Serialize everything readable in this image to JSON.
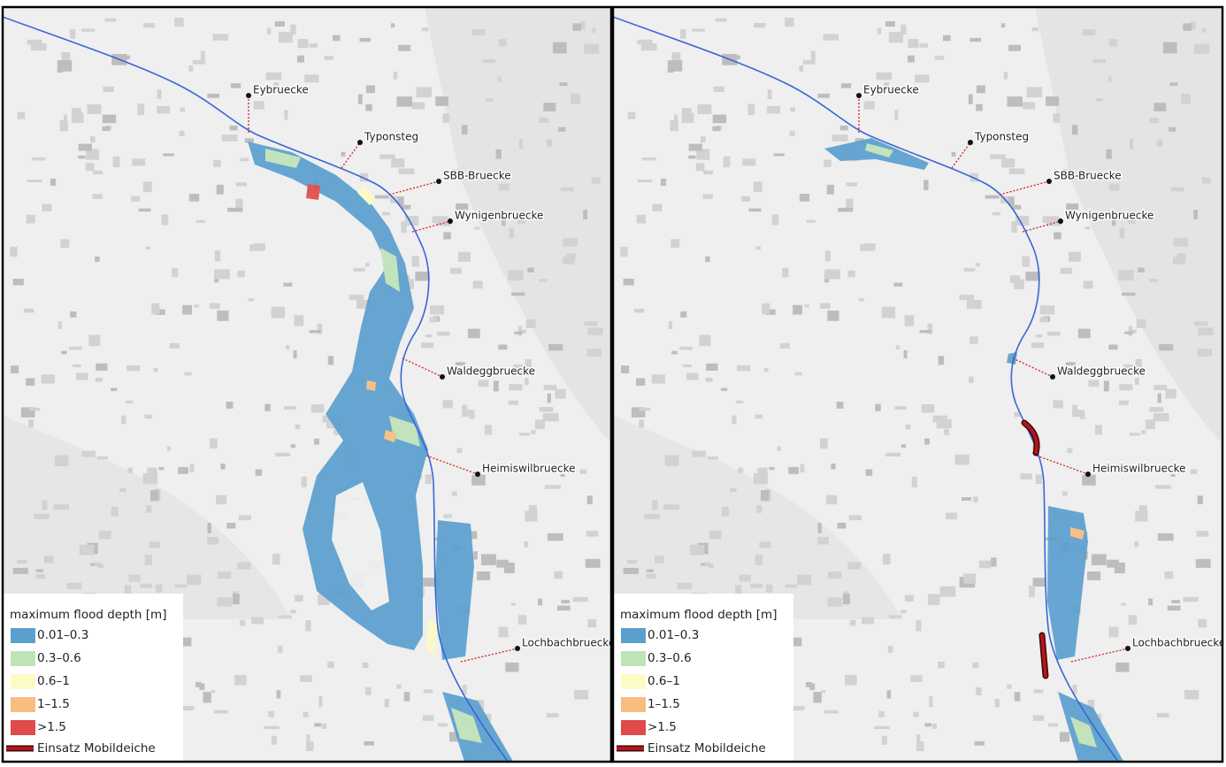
{
  "panels": [
    {
      "bridges": [
        "Eybruecke",
        "Typonsteg",
        "SBB-Bruecke",
        "Wynigenbruecke",
        "Waldeggbruecke",
        "Heimiswilbruecke",
        "Lochbachbruecke"
      ],
      "legend": {
        "title": "maximum flood depth [m]",
        "items": [
          {
            "label": "0.01–0.3",
            "color": "#5b9fcf"
          },
          {
            "label": "0.3–0.6",
            "color": "#bfe3b8"
          },
          {
            "label": "0.6–1",
            "color": "#fdfbc3"
          },
          {
            "label": "1–1.5",
            "color": "#f9bd7f"
          },
          {
            "label": ">1.5",
            "color": "#e04a4a"
          }
        ],
        "dike": {
          "label": "Einsatz Mobildeiche",
          "color": "#b3161b"
        }
      }
    },
    {
      "bridges": [
        "Eybruecke",
        "Typonsteg",
        "SBB-Bruecke",
        "Wynigenbruecke",
        "Waldeggbruecke",
        "Heimiswilbruecke",
        "Lochbachbruecke"
      ],
      "legend": {
        "title": "maximum flood depth [m]",
        "items": [
          {
            "label": "0.01–0.3",
            "color": "#5b9fcf"
          },
          {
            "label": "0.3–0.6",
            "color": "#bfe3b8"
          },
          {
            "label": "0.6–1",
            "color": "#fdfbc3"
          },
          {
            "label": "1–1.5",
            "color": "#f9bd7f"
          },
          {
            "label": ">1.5",
            "color": "#e04a4a"
          }
        ],
        "dike": {
          "label": "Einsatz Mobildeiche",
          "color": "#b3161b"
        }
      }
    }
  ]
}
